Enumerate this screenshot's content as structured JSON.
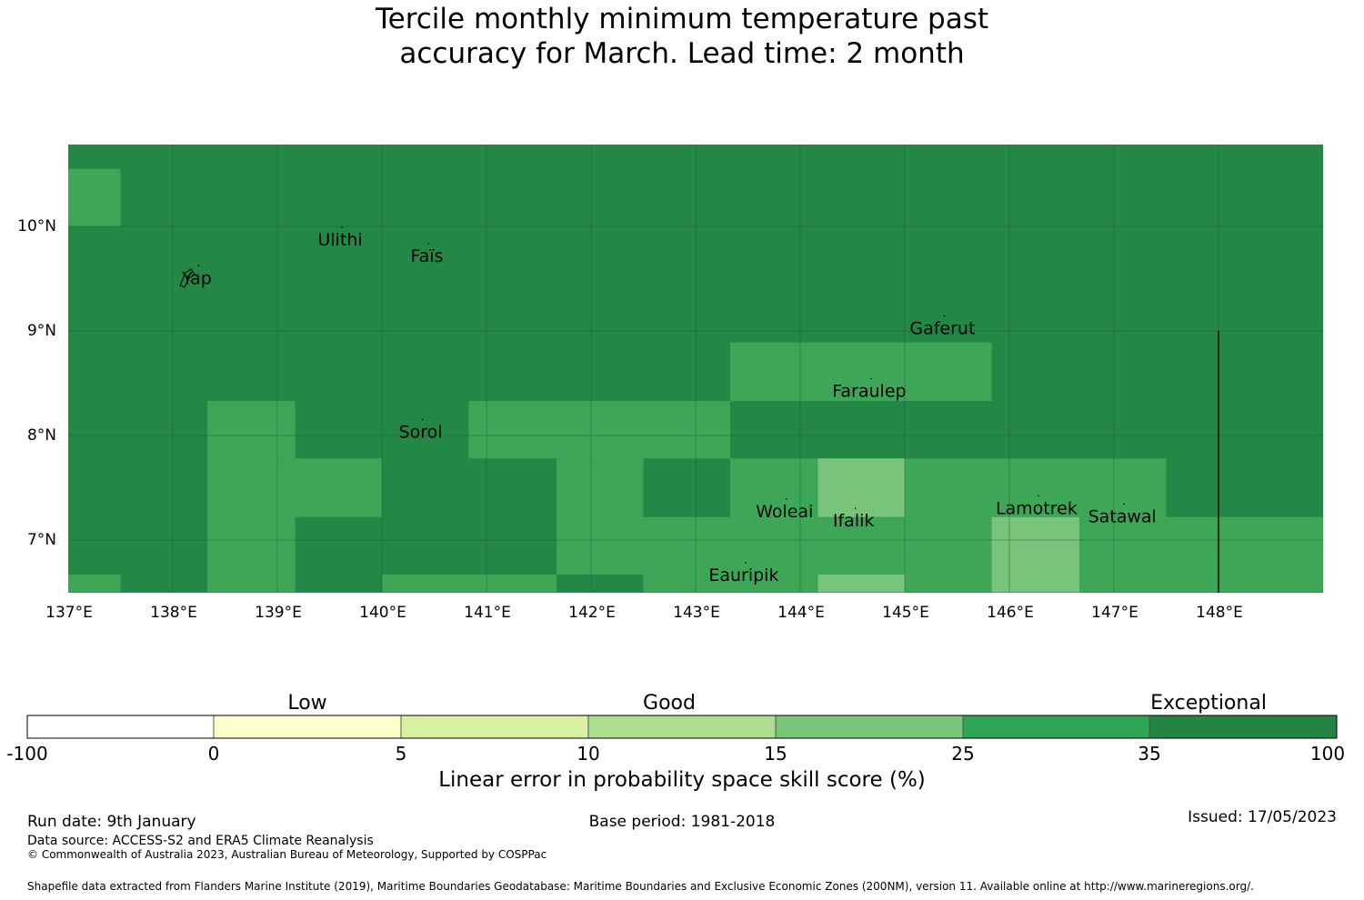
{
  "title": {
    "line1": "Tercile monthly minimum temperature past",
    "line2": "accuracy for March. Lead time: 2 month"
  },
  "map": {
    "lat_ticks": [
      "10°N",
      "9°N",
      "8°N",
      "7°N"
    ],
    "lon_ticks": [
      "137°E",
      "138°E",
      "139°E",
      "140°E",
      "141°E",
      "142°E",
      "143°E",
      "144°E",
      "145°E",
      "146°E",
      "147°E",
      "148°E"
    ],
    "base_color": "#238845",
    "colors": {
      "c25_35": "#3ea657",
      "c15_25": "#78c47a",
      "c35_100": "#238845"
    },
    "cells": [
      {
        "lon": [
          137.0,
          137.5
        ],
        "lat": [
          10.0,
          10.55
        ],
        "cls": "25-35"
      },
      {
        "lon": [
          138.33,
          139.17
        ],
        "lat": [
          7.78,
          8.33
        ],
        "cls": "25-35"
      },
      {
        "lon": [
          138.33,
          139.17
        ],
        "lat": [
          6.5,
          7.78
        ],
        "cls": "25-35"
      },
      {
        "lon": [
          139.17,
          140.0
        ],
        "lat": [
          7.22,
          7.78
        ],
        "cls": "25-35"
      },
      {
        "lon": [
          137.0,
          137.5
        ],
        "lat": [
          6.5,
          6.67
        ],
        "cls": "25-35"
      },
      {
        "lon": [
          140.0,
          141.67
        ],
        "lat": [
          6.5,
          6.67
        ],
        "cls": "25-35"
      },
      {
        "lon": [
          140.83,
          143.33
        ],
        "lat": [
          7.78,
          8.33
        ],
        "cls": "25-35"
      },
      {
        "lon": [
          141.67,
          142.5
        ],
        "lat": [
          6.67,
          7.78
        ],
        "cls": "25-35"
      },
      {
        "lon": [
          142.5,
          143.33
        ],
        "lat": [
          6.5,
          7.22
        ],
        "cls": "25-35"
      },
      {
        "lon": [
          142.5,
          144.17
        ],
        "lat": [
          6.5,
          6.67
        ],
        "cls": "25-35"
      },
      {
        "lon": [
          143.33,
          144.17
        ],
        "lat": [
          6.67,
          7.78
        ],
        "cls": "25-35"
      },
      {
        "lon": [
          143.33,
          145.83
        ],
        "lat": [
          8.33,
          8.89
        ],
        "cls": "25-35"
      },
      {
        "lon": [
          144.17,
          145.0
        ],
        "lat": [
          6.67,
          7.22
        ],
        "cls": "25-35"
      },
      {
        "lon": [
          145.0,
          147.5
        ],
        "lat": [
          7.22,
          7.78
        ],
        "cls": "25-35"
      },
      {
        "lon": [
          145.0,
          145.83
        ],
        "lat": [
          6.5,
          7.22
        ],
        "cls": "25-35"
      },
      {
        "lon": [
          146.67,
          149.0
        ],
        "lat": [
          6.5,
          7.22
        ],
        "cls": "25-35"
      },
      {
        "lon": [
          144.17,
          145.0
        ],
        "lat": [
          7.22,
          7.78
        ],
        "cls": "15-25"
      },
      {
        "lon": [
          144.17,
          145.0
        ],
        "lat": [
          6.5,
          6.67
        ],
        "cls": "15-25"
      },
      {
        "lon": [
          145.83,
          146.67
        ],
        "lat": [
          6.5,
          7.22
        ],
        "cls": "15-25"
      }
    ],
    "places": [
      {
        "name": "Ulithi",
        "lon": 139.6,
        "lat": 9.88
      },
      {
        "name": "Faïs",
        "lon": 140.43,
        "lat": 9.72
      },
      {
        "name": "Yap",
        "lon": 138.23,
        "lat": 9.51
      },
      {
        "name": "Gaferut",
        "lon": 145.36,
        "lat": 9.03
      },
      {
        "name": "Faraulep",
        "lon": 144.66,
        "lat": 8.43
      },
      {
        "name": "Sorol",
        "lon": 140.37,
        "lat": 8.04
      },
      {
        "name": "Woleai",
        "lon": 143.85,
        "lat": 7.28
      },
      {
        "name": "Ifalik",
        "lon": 144.51,
        "lat": 7.19
      },
      {
        "name": "Lamotrek",
        "lon": 146.26,
        "lat": 7.31
      },
      {
        "name": "Satawal",
        "lon": 147.08,
        "lat": 7.23
      },
      {
        "name": "Eauripik",
        "lon": 143.46,
        "lat": 6.67
      }
    ]
  },
  "colorbar": {
    "categories": [
      "Low",
      "Good",
      "Exceptional"
    ],
    "ticks": [
      "-100",
      "0",
      "5",
      "10",
      "15",
      "25",
      "35",
      "100"
    ],
    "colors": [
      "#ffffff",
      "#ffffcc",
      "#d9f0a3",
      "#addd8e",
      "#78c679",
      "#31a354",
      "#238443"
    ],
    "label": "Linear error in probability space skill score (%)"
  },
  "footer": {
    "run_date": "Run date: 9th January",
    "base_period": "Base period: 1981-2018",
    "issued": "Issued: 17/05/2023",
    "data_source": "Data source: ACCESS-S2 and ERA5 Climate Reanalysis",
    "copyright": "© Commonwealth of Australia 2023, Australian Bureau of Meteorology, Supported by COSPPac",
    "shapefile": "Shapefile data extracted from Flanders Marine Institute (2019), Maritime Boundaries Geodatabase: Maritime Boundaries and Exclusive Economic Zones (200NM), version 11. Available online at http://www.marineregions.org/."
  }
}
